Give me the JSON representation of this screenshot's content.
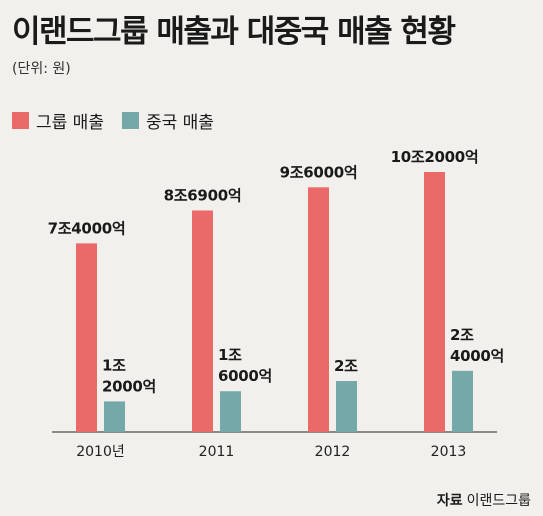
{
  "title": "이랜드그룹 매출과 대중국 매출 현황",
  "unit_note": "(단위: 원)",
  "legend": [
    {
      "label": "그룹 매출",
      "color": "#e96a68"
    },
    {
      "label": "중국 매출",
      "color": "#75a8a9"
    }
  ],
  "chart_data": {
    "type": "bar",
    "categories": [
      "2010년",
      "2011",
      "2012",
      "2013"
    ],
    "series": [
      {
        "name": "그룹 매출",
        "color": "#e96a68",
        "values": [
          74000,
          86900,
          96000,
          102000
        ],
        "labels": [
          [
            "7조4000억"
          ],
          [
            "8조6900억"
          ],
          [
            "9조6000억"
          ],
          [
            "10조2000억"
          ]
        ]
      },
      {
        "name": "중국 매출",
        "color": "#75a8a9",
        "values": [
          12000,
          16000,
          20000,
          24000
        ],
        "labels": [
          [
            "1조",
            "2000억"
          ],
          [
            "1조",
            "6000억"
          ],
          [
            "2조"
          ],
          [
            "2조",
            "4000억"
          ]
        ]
      }
    ],
    "unit": "억원",
    "ylim": [
      0,
      110000
    ],
    "grid": false,
    "legend_position": "top-left"
  },
  "source": {
    "label": "자료",
    "value": "이랜드그룹"
  }
}
